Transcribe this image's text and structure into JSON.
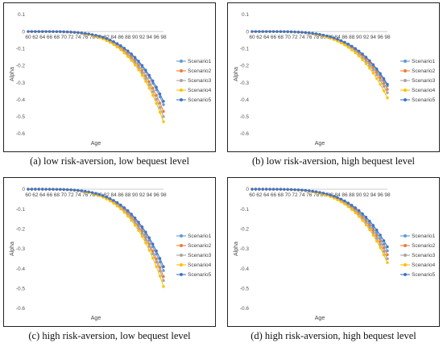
{
  "chart_data": [
    {
      "type": "line",
      "caption": "(a) low risk-aversion, low bequest level",
      "xlabel": "Age",
      "ylabel": "Alpha",
      "ylim": [
        -0.6,
        0.1
      ],
      "yticks": [
        "0.1",
        "0",
        "-0.1",
        "-0.2",
        "-0.3",
        "-0.4",
        "-0.5",
        "-0.6"
      ],
      "ytick_values": [
        0.1,
        0,
        -0.1,
        -0.2,
        -0.3,
        -0.4,
        -0.5,
        -0.6
      ],
      "x": [
        60,
        61,
        62,
        63,
        64,
        65,
        66,
        67,
        68,
        69,
        70,
        71,
        72,
        73,
        74,
        75,
        76,
        77,
        78,
        79,
        80,
        81,
        82,
        83,
        84,
        85,
        86,
        87,
        88,
        89,
        90,
        91,
        92,
        93,
        94,
        95,
        96,
        97,
        98
      ],
      "xticks": [
        60,
        62,
        64,
        66,
        68,
        70,
        72,
        74,
        76,
        78,
        80,
        82,
        84,
        86,
        88,
        90,
        92,
        94,
        96,
        98
      ],
      "legend_position": "right",
      "series": [
        {
          "name": "Scenario1",
          "color": "#5b9bd5",
          "end": -0.43
        },
        {
          "name": "Scenario2",
          "color": "#ed7d31",
          "end": -0.47
        },
        {
          "name": "Scenario3",
          "color": "#a5a5a5",
          "end": -0.5
        },
        {
          "name": "Scenario4",
          "color": "#ffc000",
          "end": -0.53
        },
        {
          "name": "Scenario5",
          "color": "#4472c4",
          "end": -0.41
        }
      ]
    },
    {
      "type": "line",
      "caption": "(b) low risk-aversion, high bequest level",
      "xlabel": "Age",
      "ylabel": "Alpha",
      "ylim": [
        -0.6,
        0.1
      ],
      "yticks": [
        "0.1",
        "0",
        "-0.1",
        "-0.2",
        "-0.3",
        "-0.4",
        "-0.5",
        "-0.6"
      ],
      "ytick_values": [
        0.1,
        0,
        -0.1,
        -0.2,
        -0.3,
        -0.4,
        -0.5,
        -0.6
      ],
      "x": [
        60,
        61,
        62,
        63,
        64,
        65,
        66,
        67,
        68,
        69,
        70,
        71,
        72,
        73,
        74,
        75,
        76,
        77,
        78,
        79,
        80,
        81,
        82,
        83,
        84,
        85,
        86,
        87,
        88,
        89,
        90,
        91,
        92,
        93,
        94,
        95,
        96,
        97,
        98
      ],
      "xticks": [
        60,
        62,
        64,
        66,
        68,
        70,
        72,
        74,
        76,
        78,
        80,
        82,
        84,
        86,
        88,
        90,
        92,
        94,
        96,
        98
      ],
      "legend_position": "right",
      "series": [
        {
          "name": "Scenario1",
          "color": "#5b9bd5",
          "end": -0.32
        },
        {
          "name": "Scenario2",
          "color": "#ed7d31",
          "end": -0.34
        },
        {
          "name": "Scenario3",
          "color": "#a5a5a5",
          "end": -0.36
        },
        {
          "name": "Scenario4",
          "color": "#ffc000",
          "end": -0.39
        },
        {
          "name": "Scenario5",
          "color": "#4472c4",
          "end": -0.31
        }
      ]
    },
    {
      "type": "line",
      "caption": "(c) high risk-aversion, low bequest level",
      "xlabel": "Age",
      "ylabel": "Alpha",
      "ylim": [
        -0.6,
        0
      ],
      "yticks": [
        "0",
        "-0.1",
        "-0.2",
        "-0.3",
        "-0.4",
        "-0.5",
        "-0.6"
      ],
      "ytick_values": [
        0,
        -0.1,
        -0.2,
        -0.3,
        -0.4,
        -0.5,
        -0.6
      ],
      "x": [
        60,
        61,
        62,
        63,
        64,
        65,
        66,
        67,
        68,
        69,
        70,
        71,
        72,
        73,
        74,
        75,
        76,
        77,
        78,
        79,
        80,
        81,
        82,
        83,
        84,
        85,
        86,
        87,
        88,
        89,
        90,
        91,
        92,
        93,
        94,
        95,
        96,
        97,
        98
      ],
      "xticks": [
        60,
        62,
        64,
        66,
        68,
        70,
        72,
        74,
        76,
        78,
        80,
        82,
        84,
        86,
        88,
        90,
        92,
        94,
        96,
        98
      ],
      "legend_position": "right",
      "series": [
        {
          "name": "Scenario1",
          "color": "#5b9bd5",
          "end": -0.41
        },
        {
          "name": "Scenario2",
          "color": "#ed7d31",
          "end": -0.44
        },
        {
          "name": "Scenario3",
          "color": "#a5a5a5",
          "end": -0.46
        },
        {
          "name": "Scenario4",
          "color": "#ffc000",
          "end": -0.49
        },
        {
          "name": "Scenario5",
          "color": "#4472c4",
          "end": -0.39
        }
      ]
    },
    {
      "type": "line",
      "caption": "(d) high risk-aversion, high bequest level",
      "xlabel": "Age",
      "ylabel": "Alpha",
      "ylim": [
        -0.6,
        0
      ],
      "yticks": [
        "0",
        "-0.1",
        "-0.2",
        "-0.3",
        "-0.4",
        "-0.5",
        "-0.6"
      ],
      "ytick_values": [
        0,
        -0.1,
        -0.2,
        -0.3,
        -0.4,
        -0.5,
        -0.6
      ],
      "x": [
        60,
        61,
        62,
        63,
        64,
        65,
        66,
        67,
        68,
        69,
        70,
        71,
        72,
        73,
        74,
        75,
        76,
        77,
        78,
        79,
        80,
        81,
        82,
        83,
        84,
        85,
        86,
        87,
        88,
        89,
        90,
        91,
        92,
        93,
        94,
        95,
        96,
        97,
        98
      ],
      "xticks": [
        60,
        62,
        64,
        66,
        68,
        70,
        72,
        74,
        76,
        78,
        80,
        82,
        84,
        86,
        88,
        90,
        92,
        94,
        96,
        98
      ],
      "legend_position": "right",
      "series": [
        {
          "name": "Scenario1",
          "color": "#5b9bd5",
          "end": -0.31
        },
        {
          "name": "Scenario2",
          "color": "#ed7d31",
          "end": -0.33
        },
        {
          "name": "Scenario3",
          "color": "#a5a5a5",
          "end": -0.35
        },
        {
          "name": "Scenario4",
          "color": "#ffc000",
          "end": -0.37
        },
        {
          "name": "Scenario5",
          "color": "#4472c4",
          "end": -0.29
        }
      ]
    }
  ]
}
